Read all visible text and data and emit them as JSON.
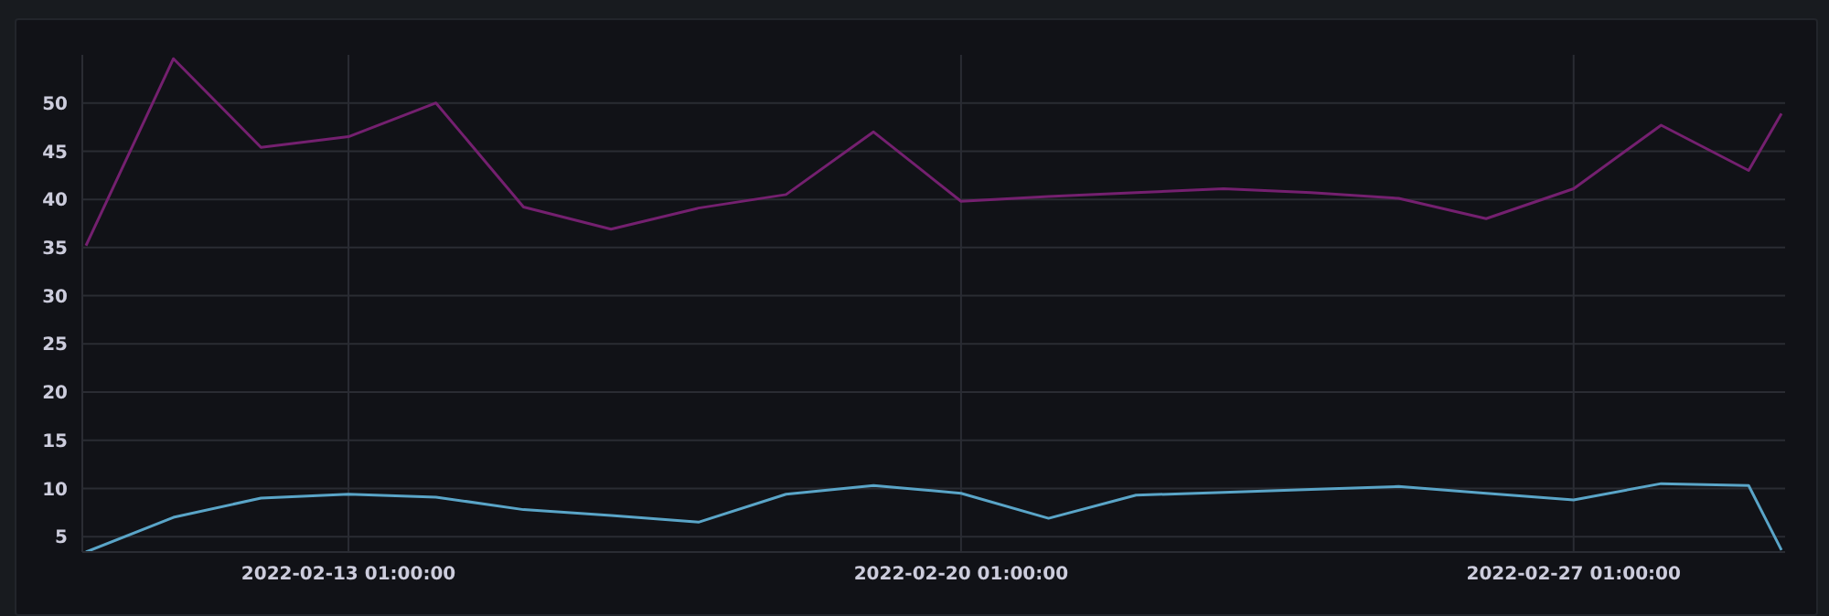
{
  "chart_data": {
    "type": "line",
    "x": [
      "2022-02-10T01:00",
      "2022-02-11T01:00",
      "2022-02-12T01:00",
      "2022-02-13T01:00",
      "2022-02-14T01:00",
      "2022-02-15T01:00",
      "2022-02-16T01:00",
      "2022-02-17T01:00",
      "2022-02-18T01:00",
      "2022-02-19T01:00",
      "2022-02-20T01:00",
      "2022-02-21T01:00",
      "2022-02-22T01:00",
      "2022-02-23T01:00",
      "2022-02-24T01:00",
      "2022-02-25T01:00",
      "2022-02-26T01:00",
      "2022-02-27T01:00",
      "2022-02-28T01:00",
      "2022-03-01T01:00",
      "2022-03-01T10:00"
    ],
    "series": [
      {
        "color": "#74206f",
        "values": [
          35.2,
          54.6,
          45.4,
          46.5,
          50.0,
          39.2,
          36.9,
          39.1,
          40.5,
          47.0,
          39.8,
          40.3,
          40.7,
          41.1,
          40.7,
          40.1,
          38.0,
          41.1,
          47.7,
          43.0,
          48.9
        ]
      },
      {
        "color": "#5aa5c8",
        "values": [
          3.4,
          7.0,
          9.0,
          9.4,
          9.1,
          7.8,
          7.2,
          6.5,
          9.4,
          10.3,
          9.5,
          6.9,
          9.3,
          9.6,
          9.9,
          10.2,
          9.5,
          8.8,
          10.5,
          10.3,
          3.6
        ]
      }
    ],
    "xlim": [
      "2022-02-10T00:00",
      "2022-03-01T11:00"
    ],
    "xticks": [
      {
        "value": "2022-02-13T01:00",
        "label": "2022-02-13 01:00:00"
      },
      {
        "value": "2022-02-20T01:00",
        "label": "2022-02-20 01:00:00"
      },
      {
        "value": "2022-02-27T01:00",
        "label": "2022-02-27 01:00:00"
      }
    ],
    "ylim": [
      3.4,
      55
    ],
    "yticks": [
      5,
      10,
      15,
      20,
      25,
      30,
      35,
      40,
      45,
      50
    ],
    "grid": true,
    "marker": "none",
    "line_style": "solid"
  }
}
